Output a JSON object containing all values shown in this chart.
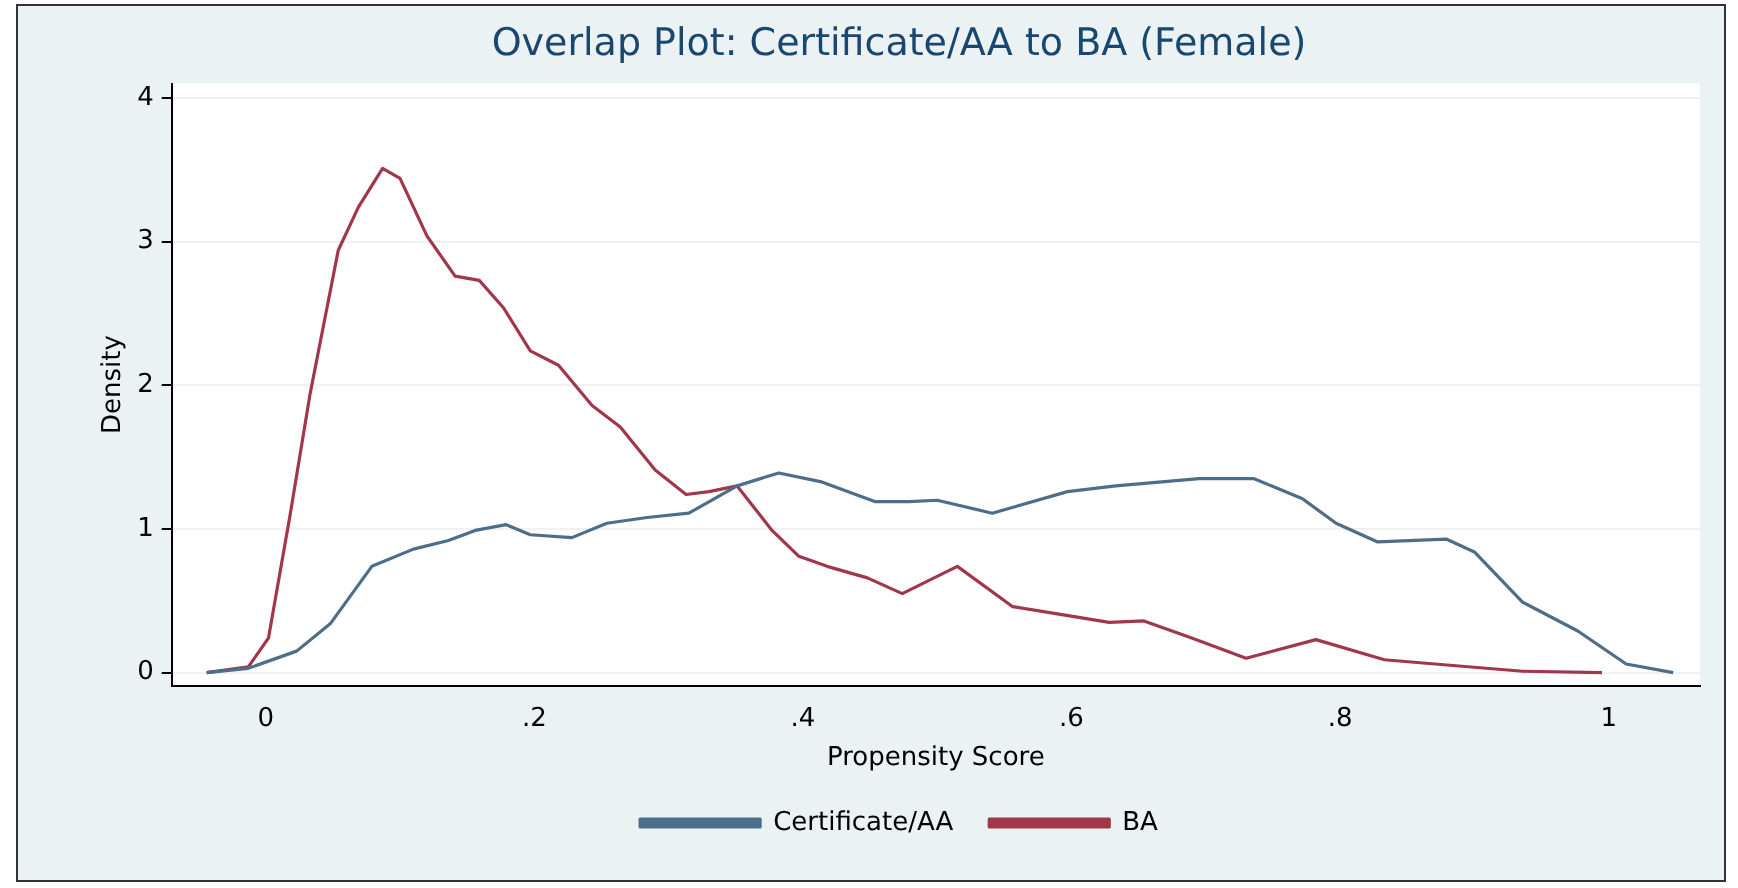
{
  "chart_data": {
    "type": "line",
    "title": "Overlap Plot: Certificate/AA to BA (Female)",
    "xlabel": "Propensity Score",
    "ylabel": "Density",
    "xlim": [
      -0.07,
      1.068
    ],
    "ylim": [
      -0.09,
      4.1
    ],
    "xticks": [
      0,
      {
        "value": 0.2,
        "label": ".2"
      },
      {
        "value": 0.4,
        "label": ".4"
      },
      {
        "value": 0.6,
        "label": ".6"
      },
      {
        "value": 0.8,
        "label": ".8"
      },
      1
    ],
    "yticks": [
      0,
      1,
      2,
      3,
      4
    ],
    "grid": "y",
    "legend": "bottom",
    "marker": "none",
    "line_style": "solid",
    "series": [
      {
        "name": "Certificate/AA",
        "color": "#4d6e8a",
        "x": [
          -0.044,
          -0.013,
          0.023,
          0.048,
          0.079,
          0.11,
          0.136,
          0.156,
          0.179,
          0.197,
          0.228,
          0.254,
          0.284,
          0.315,
          0.351,
          0.382,
          0.413,
          0.454,
          0.479,
          0.5,
          0.541,
          0.597,
          0.633,
          0.695,
          0.736,
          0.772,
          0.797,
          0.828,
          0.879,
          0.9,
          0.936,
          0.977,
          1.013,
          1.048
        ],
        "values": [
          0,
          0.03,
          0.15,
          0.34,
          0.74,
          0.86,
          0.92,
          0.99,
          1.03,
          0.96,
          0.94,
          1.04,
          1.08,
          1.11,
          1.3,
          1.39,
          1.33,
          1.19,
          1.19,
          1.2,
          1.11,
          1.26,
          1.3,
          1.35,
          1.35,
          1.21,
          1.04,
          0.91,
          0.93,
          0.84,
          0.49,
          0.29,
          0.06,
          0
        ]
      },
      {
        "name": "BA",
        "color": "#a0374a",
        "x": [
          -0.044,
          -0.013,
          0.002,
          0.018,
          0.033,
          0.054,
          0.069,
          0.087,
          0.1,
          0.12,
          0.141,
          0.159,
          0.177,
          0.197,
          0.218,
          0.243,
          0.264,
          0.29,
          0.313,
          0.33,
          0.351,
          0.377,
          0.397,
          0.418,
          0.448,
          0.474,
          0.515,
          0.556,
          0.602,
          0.628,
          0.654,
          0.69,
          0.73,
          0.782,
          0.833,
          0.884,
          0.936,
          0.995
        ],
        "values": [
          0,
          0.04,
          0.24,
          1.09,
          1.94,
          2.94,
          3.24,
          3.51,
          3.44,
          3.04,
          2.76,
          2.73,
          2.54,
          2.24,
          2.14,
          1.86,
          1.71,
          1.41,
          1.24,
          1.26,
          1.3,
          0.99,
          0.81,
          0.74,
          0.66,
          0.55,
          0.74,
          0.46,
          0.39,
          0.35,
          0.36,
          0.24,
          0.1,
          0.23,
          0.09,
          0.05,
          0.01,
          0
        ]
      }
    ]
  }
}
